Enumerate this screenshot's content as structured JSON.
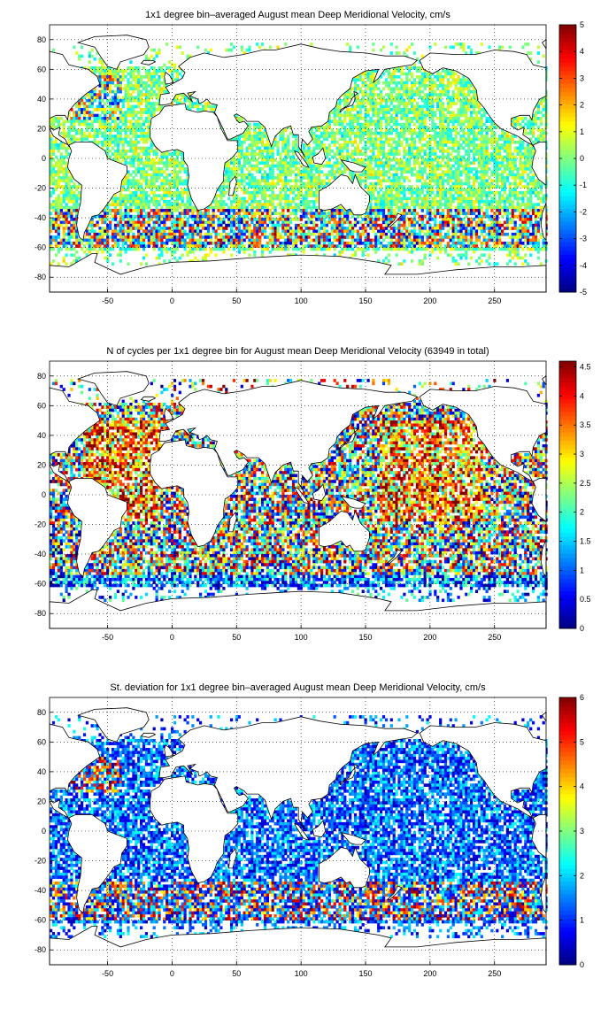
{
  "chart_data": [
    {
      "type": "heatmap",
      "title": "1x1 degree bin–averaged August mean Deep Meridional Velocity, cm/s",
      "xlim": [
        -95,
        290
      ],
      "ylim": [
        -90,
        90
      ],
      "xticks": [
        -50,
        0,
        50,
        100,
        150,
        200,
        250
      ],
      "yticks": [
        -80,
        -60,
        -40,
        -20,
        0,
        20,
        40,
        60,
        80
      ],
      "grid": "dotted",
      "colorbar": {
        "min": -5,
        "max": 5,
        "ticks": [
          -5,
          -4,
          -3,
          -2,
          -1,
          0,
          1,
          2,
          3,
          4,
          5
        ],
        "colormap": "jet"
      },
      "pattern": "velocity"
    },
    {
      "type": "heatmap",
      "title": "N of cycles per 1x1 degree bin for August mean Deep Meridional Velocity (63949 in total)",
      "xlim": [
        -95,
        290
      ],
      "ylim": [
        -90,
        90
      ],
      "xticks": [
        -50,
        0,
        50,
        100,
        150,
        200,
        250
      ],
      "yticks": [
        -80,
        -60,
        -40,
        -20,
        0,
        20,
        40,
        60,
        80
      ],
      "grid": "dotted",
      "colorbar": {
        "min": 0,
        "max": 4.6,
        "ticks": [
          0,
          0.5,
          1,
          1.5,
          2,
          2.5,
          3,
          3.5,
          4,
          4.5
        ],
        "colormap": "jet"
      },
      "pattern": "count"
    },
    {
      "type": "heatmap",
      "title": "St. deviation for 1x1 degree bin–averaged August mean Deep Meridional Velocity, cm/s",
      "xlim": [
        -95,
        290
      ],
      "ylim": [
        -90,
        90
      ],
      "xticks": [
        -50,
        0,
        50,
        100,
        150,
        200,
        250
      ],
      "yticks": [
        -80,
        -60,
        -40,
        -20,
        0,
        20,
        40,
        60,
        80
      ],
      "grid": "dotted",
      "colorbar": {
        "min": 0,
        "max": 6,
        "ticks": [
          0,
          1,
          2,
          3,
          4,
          5,
          6
        ],
        "colormap": "jet"
      },
      "pattern": "std"
    }
  ]
}
